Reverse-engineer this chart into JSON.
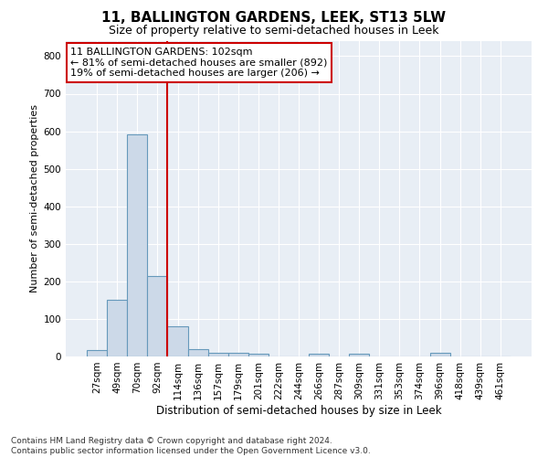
{
  "title": "11, BALLINGTON GARDENS, LEEK, ST13 5LW",
  "subtitle": "Size of property relative to semi-detached houses in Leek",
  "xlabel": "Distribution of semi-detached houses by size in Leek",
  "ylabel": "Number of semi-detached properties",
  "footnote": "Contains HM Land Registry data © Crown copyright and database right 2024.\nContains public sector information licensed under the Open Government Licence v3.0.",
  "categories": [
    "27sqm",
    "49sqm",
    "70sqm",
    "92sqm",
    "114sqm",
    "136sqm",
    "157sqm",
    "179sqm",
    "201sqm",
    "222sqm",
    "244sqm",
    "266sqm",
    "287sqm",
    "309sqm",
    "331sqm",
    "353sqm",
    "374sqm",
    "396sqm",
    "418sqm",
    "439sqm",
    "461sqm"
  ],
  "values": [
    18,
    152,
    592,
    215,
    80,
    19,
    10,
    9,
    8,
    0,
    0,
    7,
    0,
    7,
    0,
    0,
    0,
    10,
    0,
    0,
    0
  ],
  "bar_color": "#ccd9e8",
  "bar_edge_color": "#6699bb",
  "vline_color": "#cc0000",
  "ylim": [
    0,
    840
  ],
  "yticks": [
    0,
    100,
    200,
    300,
    400,
    500,
    600,
    700,
    800
  ],
  "annotation_text": "11 BALLINGTON GARDENS: 102sqm\n← 81% of semi-detached houses are smaller (892)\n19% of semi-detached houses are larger (206) →",
  "annotation_box_color": "#cc0000",
  "background_color": "#e8eef5",
  "title_fontsize": 11,
  "subtitle_fontsize": 9,
  "tick_fontsize": 7.5,
  "annotation_fontsize": 8,
  "ylabel_fontsize": 8,
  "xlabel_fontsize": 8.5,
  "footnote_fontsize": 6.5
}
